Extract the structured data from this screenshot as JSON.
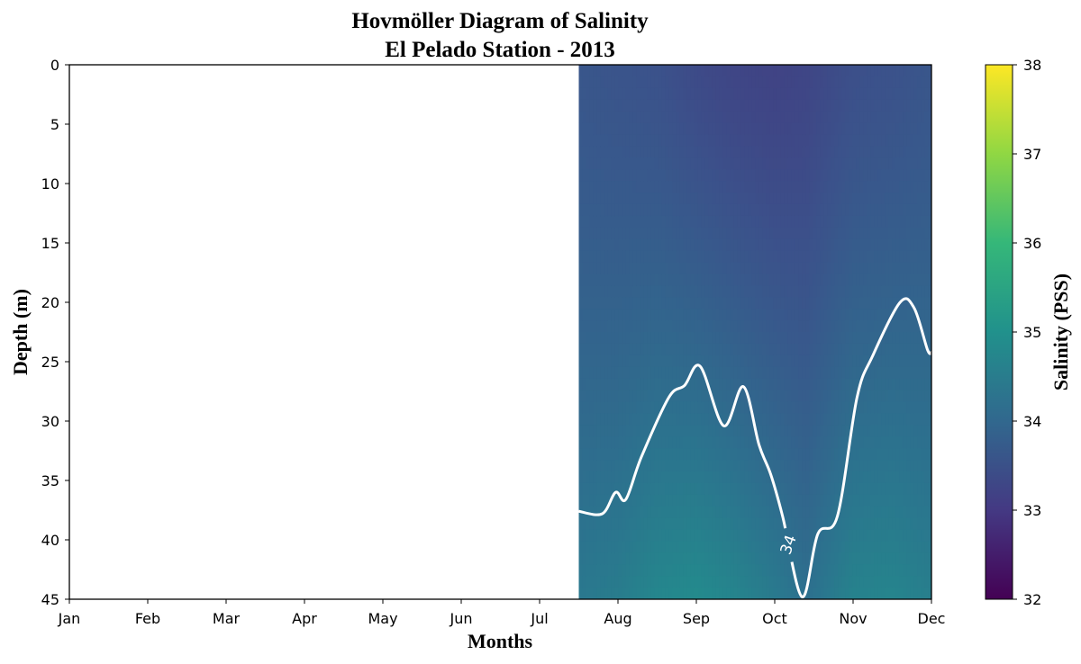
{
  "chart_data": {
    "type": "heatmap",
    "title_line1": "Hovmöller Diagram of Salinity",
    "title_line2": "El Pelado Station - 2013",
    "xlabel": "Months",
    "ylabel": "Depth (m)",
    "colorbar_label": "Salinity (PSS)",
    "colormap": "viridis",
    "x_ticks": [
      "Jan",
      "Feb",
      "Mar",
      "Apr",
      "May",
      "Jun",
      "Jul",
      "Aug",
      "Sep",
      "Oct",
      "Nov",
      "Dec"
    ],
    "y_ticks": [
      "0",
      "5",
      "10",
      "15",
      "20",
      "25",
      "30",
      "35",
      "40",
      "45"
    ],
    "colorbar_ticks": [
      "32",
      "33",
      "34",
      "35",
      "36",
      "37",
      "38"
    ],
    "xlim": [
      1,
      12
    ],
    "ylim": [
      45,
      0
    ],
    "clim": [
      32,
      38
    ],
    "data_start_month": 7.5,
    "contour": {
      "level": 34,
      "label": "34",
      "color": "#ffffff",
      "depth_by_month": [
        [
          7.5,
          37.6
        ],
        [
          7.8,
          37.8
        ],
        [
          7.97,
          36.0
        ],
        [
          8.1,
          36.6
        ],
        [
          8.3,
          33.0
        ],
        [
          8.65,
          28.0
        ],
        [
          8.85,
          27.0
        ],
        [
          9.05,
          25.4
        ],
        [
          9.35,
          30.4
        ],
        [
          9.6,
          27.1
        ],
        [
          9.8,
          32.0
        ],
        [
          9.95,
          34.5
        ],
        [
          10.1,
          38.0
        ],
        [
          10.35,
          44.8
        ],
        [
          10.55,
          39.5
        ],
        [
          10.8,
          38.0
        ],
        [
          11.05,
          28.0
        ],
        [
          11.25,
          24.5
        ],
        [
          11.6,
          20.0
        ],
        [
          11.78,
          20.5
        ],
        [
          11.95,
          24.0
        ],
        [
          12.0,
          24.2
        ]
      ]
    },
    "field_by_month": [
      {
        "month": 7.5,
        "surface": 33.6,
        "bottom": 34.4
      },
      {
        "month": 8.0,
        "surface": 33.55,
        "bottom": 34.5
      },
      {
        "month": 8.5,
        "surface": 33.5,
        "bottom": 34.75
      },
      {
        "month": 9.0,
        "surface": 33.35,
        "bottom": 34.85
      },
      {
        "month": 9.5,
        "surface": 33.25,
        "bottom": 34.7
      },
      {
        "month": 10.0,
        "surface": 33.2,
        "bottom": 34.45
      },
      {
        "month": 10.4,
        "surface": 33.25,
        "bottom": 34.2
      },
      {
        "month": 11.0,
        "surface": 33.45,
        "bottom": 34.65
      },
      {
        "month": 11.5,
        "surface": 33.5,
        "bottom": 34.7
      },
      {
        "month": 12.0,
        "surface": 33.6,
        "bottom": 34.55
      }
    ]
  }
}
